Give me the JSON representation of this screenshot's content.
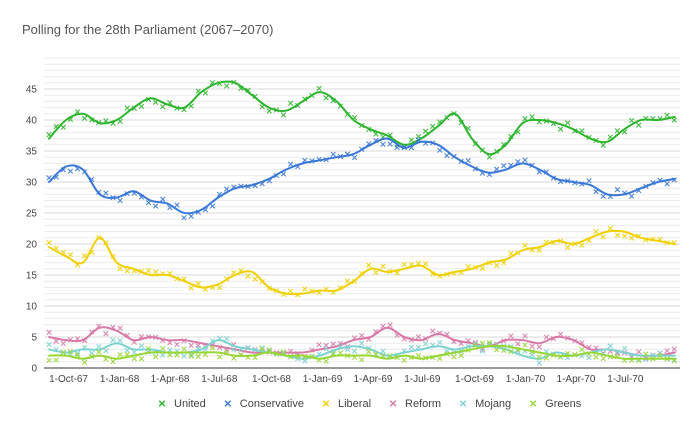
{
  "chart_data": {
    "type": "scatter",
    "title": "Polling for the 28th Parliament (2067–2070)",
    "xlabel": "",
    "ylabel": "",
    "ylim": [
      0,
      50
    ],
    "yticks": [
      0,
      5,
      10,
      15,
      20,
      25,
      30,
      35,
      40,
      45
    ],
    "grid": true,
    "legend_position": "bottom",
    "x_unit": "months since 1-Oct-67",
    "xlim": [
      -0.3,
      37.3
    ],
    "xticks": [
      {
        "x": 0,
        "label": "1-Oct-67"
      },
      {
        "x": 3,
        "label": "1-Jan-68"
      },
      {
        "x": 6,
        "label": "1-Apr-68"
      },
      {
        "x": 9,
        "label": "1-Jul-68"
      },
      {
        "x": 12,
        "label": "1-Oct-68"
      },
      {
        "x": 15,
        "label": "1-Jan-69"
      },
      {
        "x": 18,
        "label": "1-Apr-69"
      },
      {
        "x": 21,
        "label": "1-Jul-69"
      },
      {
        "x": 24,
        "label": "1-Oct-69"
      },
      {
        "x": 27,
        "label": "1-Jan-70"
      },
      {
        "x": 30,
        "label": "1-Apr-70"
      },
      {
        "x": 33,
        "label": "1-Jul-70"
      }
    ],
    "trend_x": [
      0,
      1,
      2,
      3,
      4,
      5,
      6,
      7,
      8,
      9,
      10,
      11,
      12,
      13,
      14,
      15,
      16,
      17,
      18,
      19,
      20,
      21,
      22,
      23,
      24,
      25,
      26,
      27,
      28,
      29,
      30,
      31,
      32,
      33,
      34,
      35,
      36,
      37
    ],
    "series": [
      {
        "name": "United",
        "color": "#2db52d",
        "trend": [
          37,
          40,
          41,
          39.5,
          40,
          42,
          43.5,
          42.5,
          42,
          44.5,
          46,
          46,
          44,
          42,
          41.5,
          43,
          44.5,
          43,
          40,
          38.5,
          37.5,
          36,
          37,
          39,
          41,
          37,
          34.5,
          36,
          39.5,
          40,
          39.5,
          38.5,
          37,
          36.5,
          38.5,
          40,
          40,
          40.5
        ]
      },
      {
        "name": "Conservative",
        "color": "#3a78d8",
        "trend": [
          30,
          32.5,
          32,
          28,
          27.5,
          28.5,
          27,
          26.5,
          25,
          25.5,
          27.5,
          29,
          29.5,
          30.5,
          32,
          33,
          33.5,
          34,
          34.5,
          36,
          37,
          35.5,
          36.5,
          36,
          34,
          32.5,
          31.5,
          32,
          33,
          32,
          30.5,
          30,
          29.5,
          28,
          28,
          29,
          30,
          30.5
        ]
      },
      {
        "name": "Liberal",
        "color": "#f0d000",
        "trend": [
          19.5,
          18,
          17,
          21,
          17,
          16,
          15,
          15,
          14,
          13,
          13.5,
          15,
          15.5,
          13,
          12,
          12,
          12.5,
          12.5,
          14,
          16,
          15.5,
          16,
          16.5,
          15,
          15.5,
          16,
          17,
          17.5,
          19,
          19.5,
          20.5,
          20,
          21,
          22,
          22,
          21,
          20.5,
          20
        ]
      },
      {
        "name": "Reform",
        "color": "#d87aa8",
        "trend": [
          5,
          4.5,
          4.5,
          6.5,
          6,
          4.5,
          5,
          4.5,
          4.5,
          4,
          3.5,
          3,
          2.5,
          2.5,
          2.5,
          2.5,
          3,
          3.5,
          4.5,
          5,
          6.5,
          5,
          4.5,
          5.5,
          4.5,
          4,
          3.5,
          4.5,
          4.5,
          4,
          5,
          4.5,
          3,
          3,
          2.5,
          2,
          2,
          2.5
        ]
      },
      {
        "name": "Mojang",
        "color": "#7dd3d0",
        "trend": [
          3,
          2.5,
          3,
          3,
          4,
          3,
          3,
          2.5,
          2.5,
          3,
          4.5,
          3.5,
          3,
          2.5,
          2,
          1.5,
          2,
          3,
          3.5,
          3,
          2,
          2.5,
          3,
          3.5,
          3,
          3.5,
          3.5,
          3,
          2,
          1.5,
          2.5,
          2,
          2.5,
          3,
          2.5,
          2,
          2,
          2
        ]
      },
      {
        "name": "Greens",
        "color": "#98d636",
        "trend": [
          2,
          2,
          1.5,
          2,
          1.5,
          2,
          2.5,
          2.5,
          2.5,
          2.5,
          2.5,
          2,
          2,
          2.5,
          2,
          2,
          1.5,
          2,
          2,
          2,
          1.5,
          2,
          1.5,
          2,
          2.5,
          3,
          3.5,
          3.5,
          3,
          2.5,
          2,
          2,
          2.5,
          2,
          1.5,
          1.5,
          1.5,
          1.5
        ]
      }
    ]
  }
}
